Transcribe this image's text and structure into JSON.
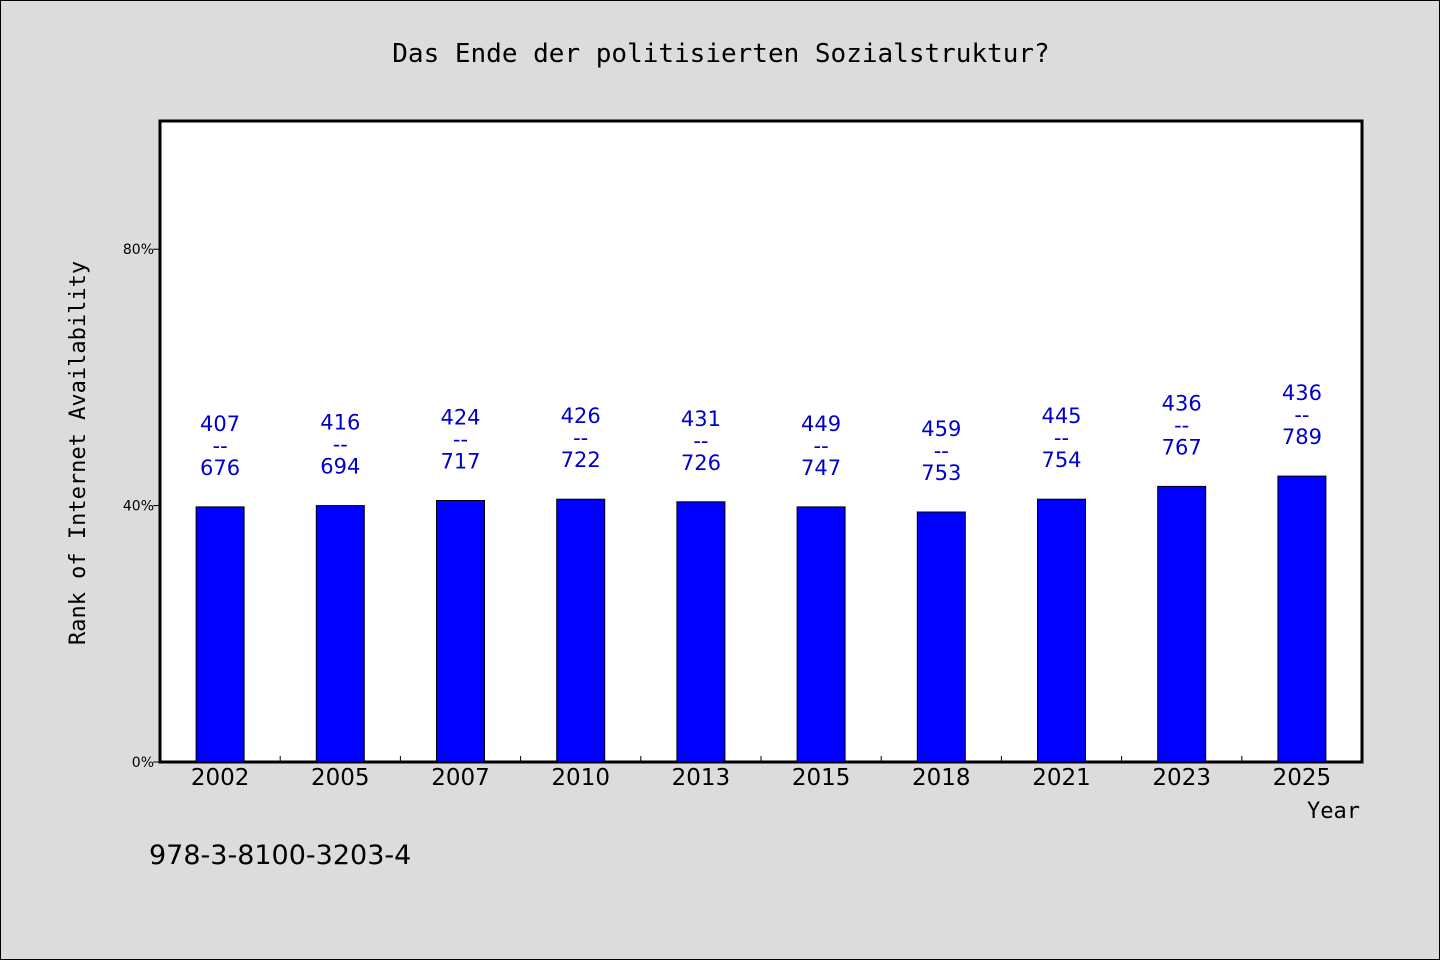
{
  "colors": {
    "background": "#dcdcdc",
    "plot_area": "#ffffff",
    "bar": "#0000ff",
    "label": "#0000cc",
    "axis": "#000000"
  },
  "chart_data": {
    "type": "bar",
    "title": "Das Ende der politisierten Sozialstruktur?",
    "xlabel": "Year",
    "ylabel": "Rank of Internet Availability",
    "categories": [
      "2002",
      "2005",
      "2007",
      "2010",
      "2013",
      "2015",
      "2018",
      "2021",
      "2023",
      "2025"
    ],
    "values": [
      39.8,
      40.0,
      40.8,
      41.0,
      40.6,
      39.8,
      39.0,
      41.0,
      43.0,
      44.6
    ],
    "value_unit": "%",
    "ylim": [
      0,
      100
    ],
    "yticks": [
      {
        "value": 0,
        "label": "0%"
      },
      {
        "value": 40,
        "label": "40%"
      },
      {
        "value": 80,
        "label": "80%"
      }
    ],
    "bar_labels": [
      {
        "top": "407",
        "sep": "--",
        "bottom": "676"
      },
      {
        "top": "416",
        "sep": "--",
        "bottom": "694"
      },
      {
        "top": "424",
        "sep": "--",
        "bottom": "717"
      },
      {
        "top": "426",
        "sep": "--",
        "bottom": "722"
      },
      {
        "top": "431",
        "sep": "--",
        "bottom": "726"
      },
      {
        "top": "449",
        "sep": "--",
        "bottom": "747"
      },
      {
        "top": "459",
        "sep": "--",
        "bottom": "753"
      },
      {
        "top": "445",
        "sep": "--",
        "bottom": "754"
      },
      {
        "top": "436",
        "sep": "--",
        "bottom": "767"
      },
      {
        "top": "436",
        "sep": "--",
        "bottom": "789"
      }
    ],
    "grid": false,
    "legend": "none"
  },
  "footer": {
    "isbn": "978-3-8100-3203-4"
  }
}
